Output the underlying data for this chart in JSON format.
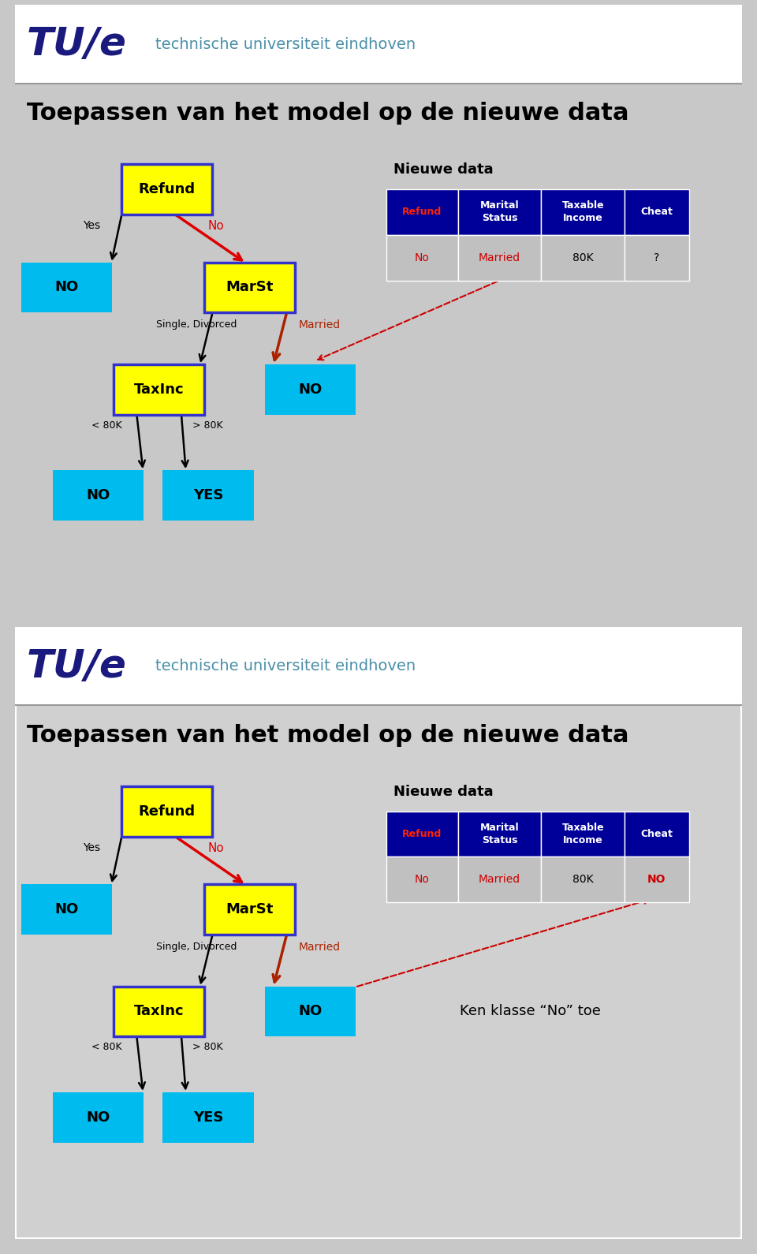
{
  "bg_color": "#c8c8c8",
  "panel1_bg": "#d0d0d0",
  "panel2_bg": "#d0d0d0",
  "white_bg": "#ffffff",
  "title_text": "Toepassen van het model op de nieuwe data",
  "subtitle": "Nieuwe data",
  "tue_subtitle": "technische universiteit eindhoven",
  "node_yellow_bg": "#ffff00",
  "node_yellow_border": "#3333cc",
  "node_cyan_bg": "#00bbee",
  "table_header_bg": "#000099",
  "table_header_text": "#ffffff",
  "table_refund_hdr_text": "#ff2200",
  "table_data_red": "#cc0000",
  "table_row_bg": "#bbbbbb",
  "arrow_red": "#dd0000",
  "arrow_dark_red": "#aa2200",
  "arrow_black": "#111111",
  "dashed_color": "#cc0000",
  "ken_klasse_text": "Ken klasse “No” toe",
  "tue_blue": "#1a1a7e",
  "tue_teal": "#4a8fa8",
  "sep_color": "#999999"
}
